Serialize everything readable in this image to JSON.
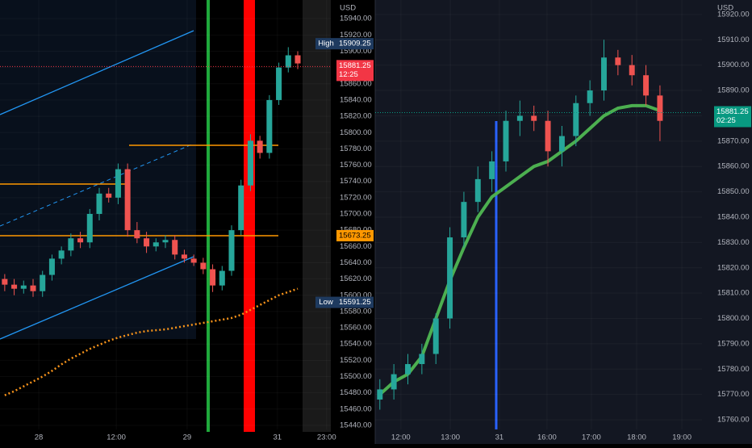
{
  "chart_data": [
    {
      "type": "candlestick",
      "currency": "USD",
      "background": "#000000",
      "up_color": "#26a69a",
      "down_color": "#ef5350",
      "xlim": [
        0,
        70
      ],
      "ylim": [
        15435,
        15963
      ],
      "xticks": [
        {
          "value": 8.2,
          "label": "28"
        },
        {
          "value": 24.6,
          "label": "12:00"
        },
        {
          "value": 39.6,
          "label": "29"
        },
        {
          "value": 58.7,
          "label": "31"
        },
        {
          "value": 69.1,
          "label": "23:00"
        }
      ],
      "yticks": [
        {
          "value": 15440,
          "label": "15440.00"
        },
        {
          "value": 15460,
          "label": "15460.00"
        },
        {
          "value": 15480,
          "label": "15480.00"
        },
        {
          "value": 15500,
          "label": "15500.00"
        },
        {
          "value": 15520,
          "label": "15520.00"
        },
        {
          "value": 15540,
          "label": "15540.00"
        },
        {
          "value": 15560,
          "label": "15560.00"
        },
        {
          "value": 15580,
          "label": "15580.00"
        },
        {
          "value": 15600,
          "label": "15600.00"
        },
        {
          "value": 15620,
          "label": "15620.00"
        },
        {
          "value": 15640,
          "label": "15640.00"
        },
        {
          "value": 15660,
          "label": "15660.00"
        },
        {
          "value": 15680,
          "label": "15680.00"
        },
        {
          "value": 15700,
          "label": "15700.00"
        },
        {
          "value": 15720,
          "label": "15720.00"
        },
        {
          "value": 15740,
          "label": "15740.00"
        },
        {
          "value": 15760,
          "label": "15760.00"
        },
        {
          "value": 15780,
          "label": "15780.00"
        },
        {
          "value": 15800,
          "label": "15800.00"
        },
        {
          "value": 15820,
          "label": "15820.00"
        },
        {
          "value": 15840,
          "label": "15840.00"
        },
        {
          "value": 15860,
          "label": "15860.00"
        },
        {
          "value": 15880,
          "label": "15880.00"
        },
        {
          "value": 15900,
          "label": "15900.00"
        },
        {
          "value": 15920,
          "label": "15920.00"
        },
        {
          "value": 15940,
          "label": "15940.00"
        }
      ],
      "x": [
        1,
        3,
        5,
        7,
        9,
        11,
        13,
        15,
        17,
        19,
        21,
        23,
        25,
        27,
        29,
        31,
        33,
        35,
        37,
        39,
        41,
        43,
        45,
        47,
        49,
        51,
        53,
        55,
        57,
        59,
        61,
        63
      ],
      "open": [
        15620,
        15613,
        15608,
        15612,
        15605,
        15625,
        15645,
        15655,
        15670,
        15665,
        15700,
        15725,
        15720,
        15755,
        15680,
        15670,
        15660,
        15665,
        15668,
        15650,
        15645,
        15640,
        15632,
        15612,
        15630,
        15680,
        15735,
        15790,
        15775,
        15840,
        15880,
        15895
      ],
      "high": [
        15626,
        15620,
        15618,
        15620,
        15630,
        15650,
        15660,
        15676,
        15678,
        15706,
        15732,
        15732,
        15762,
        15762,
        15690,
        15678,
        15670,
        15674,
        15674,
        15656,
        15650,
        15646,
        15638,
        15636,
        15686,
        15742,
        15798,
        15796,
        15846,
        15886,
        15905,
        15900
      ],
      "low": [
        15605,
        15600,
        15602,
        15598,
        15598,
        15618,
        15638,
        15648,
        15658,
        15658,
        15692,
        15714,
        15712,
        15672,
        15664,
        15652,
        15654,
        15658,
        15644,
        15640,
        15636,
        15626,
        15604,
        15606,
        15624,
        15674,
        15728,
        15768,
        15768,
        15834,
        15874,
        15878
      ],
      "close": [
        15613,
        15608,
        15612,
        15605,
        15625,
        15645,
        15655,
        15670,
        15665,
        15700,
        15725,
        15720,
        15755,
        15680,
        15670,
        15660,
        15665,
        15668,
        15650,
        15645,
        15640,
        15632,
        15612,
        15630,
        15680,
        15735,
        15790,
        15775,
        15840,
        15880,
        15895,
        15885
      ],
      "overlays": [
        {
          "color": "#f7931a",
          "values": [
            15477,
            15482,
            15488,
            15494,
            15500,
            15507,
            15515,
            15522,
            15528,
            15534,
            15539,
            15544,
            15548,
            15551,
            15554,
            15556,
            15557,
            15558,
            15560,
            15562,
            15564,
            15566,
            15568,
            15570,
            15572,
            15576,
            15582,
            15588,
            15594,
            15600,
            15604,
            15608
          ]
        }
      ],
      "poc": 15673.25,
      "markers": [
        {
          "label": "High",
          "value": 15909.25
        },
        {
          "label": "Low",
          "value": 15591.25
        }
      ],
      "last_price": 15881.25,
      "countdown": "12:25",
      "last_color": "#f23645"
    },
    {
      "type": "candlestick",
      "currency": "USD",
      "background": "#131722",
      "up_color": "#26a69a",
      "down_color": "#ef5350",
      "xlim": [
        0,
        70
      ],
      "ylim": [
        15756.2,
        15925.7
      ],
      "xticks": [
        {
          "value": 5.5,
          "label": "12:00"
        },
        {
          "value": 16.1,
          "label": "13:00"
        },
        {
          "value": 26.6,
          "label": "31"
        },
        {
          "value": 36.8,
          "label": "16:00"
        },
        {
          "value": 46.3,
          "label": "17:00"
        },
        {
          "value": 56,
          "label": "18:00"
        },
        {
          "value": 65.7,
          "label": "19:00"
        }
      ],
      "yticks": [
        {
          "value": 15760,
          "label": "15760.00"
        },
        {
          "value": 15770,
          "label": "15770.00"
        },
        {
          "value": 15780,
          "label": "15780.00"
        },
        {
          "value": 15790,
          "label": "15790.00"
        },
        {
          "value": 15800,
          "label": "15800.00"
        },
        {
          "value": 15810,
          "label": "15810.00"
        },
        {
          "value": 15820,
          "label": "15820.00"
        },
        {
          "value": 15830,
          "label": "15830.00"
        },
        {
          "value": 15840,
          "label": "15840.00"
        },
        {
          "value": 15850,
          "label": "15850.00"
        },
        {
          "value": 15860,
          "label": "15860.00"
        },
        {
          "value": 15870,
          "label": "15870.00"
        },
        {
          "value": 15880,
          "label": "15880.00"
        },
        {
          "value": 15890,
          "label": "15890.00"
        },
        {
          "value": 15900,
          "label": "15900.00"
        },
        {
          "value": 15910,
          "label": "15910.00"
        },
        {
          "value": 15920,
          "label": "15920.00"
        }
      ],
      "x": [
        1,
        4,
        7,
        10,
        13,
        16,
        19,
        22,
        25,
        28,
        31,
        34,
        37,
        40,
        43,
        46,
        49,
        52,
        55,
        58,
        61
      ],
      "open": [
        15768,
        15772,
        15778,
        15782,
        15786,
        15800,
        15832,
        15846,
        15855,
        15862,
        15878,
        15880,
        15878,
        15866,
        15872,
        15885,
        15890,
        15903,
        15900,
        15896,
        15888
      ],
      "high": [
        15776,
        15782,
        15786,
        15790,
        15802,
        15836,
        15850,
        15860,
        15866,
        15882,
        15886,
        15884,
        15882,
        15876,
        15888,
        15894,
        15910,
        15906,
        15904,
        15900,
        15892
      ],
      "low": [
        15764,
        15768,
        15774,
        15778,
        15782,
        15796,
        15828,
        15842,
        15850,
        15858,
        15872,
        15874,
        15860,
        15860,
        15868,
        15880,
        15886,
        15896,
        15892,
        15884,
        15870
      ],
      "close": [
        15772,
        15778,
        15782,
        15786,
        15800,
        15832,
        15846,
        15855,
        15862,
        15878,
        15880,
        15878,
        15866,
        15872,
        15885,
        15890,
        15903,
        15900,
        15896,
        15888,
        15878
      ],
      "overlays": [
        {
          "color": "#4caf50",
          "values": [
            15770,
            15775,
            15778,
            15785,
            15800,
            15815,
            15828,
            15840,
            15848,
            15852,
            15856,
            15860,
            15862,
            15866,
            15870,
            15875,
            15880,
            15883,
            15884,
            15884,
            15882
          ]
        }
      ],
      "last_price": 15881.25,
      "countdown": "02:25",
      "last_color": "#089981"
    }
  ]
}
